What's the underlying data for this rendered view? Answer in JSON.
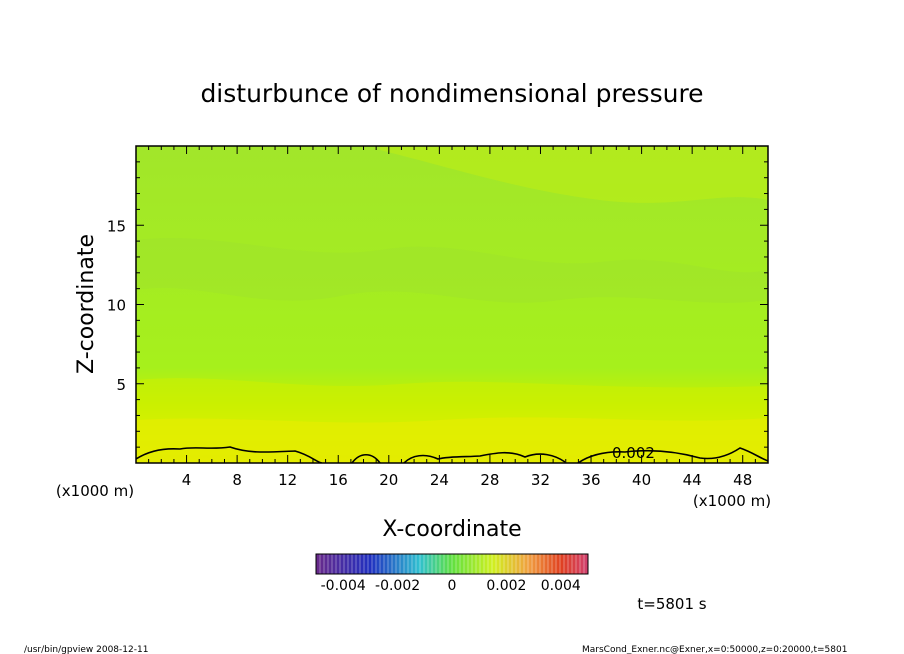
{
  "chart_data": {
    "type": "heatmap",
    "title": "disturbunce of nondimensional pressure",
    "xlabel": "X-coordinate",
    "ylabel": "Z-coordinate",
    "x_unit": "(x1000 m)",
    "z_unit": "(x1000 m)",
    "xlim": [
      0,
      50
    ],
    "ylim": [
      0,
      20
    ],
    "x_ticks": [
      "4",
      "8",
      "12",
      "16",
      "20",
      "24",
      "28",
      "32",
      "36",
      "40",
      "44",
      "48"
    ],
    "y_ticks": [
      "5",
      "10",
      "15"
    ],
    "contour_label": "0.002",
    "colorbar": {
      "range": [
        -0.005,
        0.005
      ],
      "tick_labels": [
        "-0.004",
        "-0.002",
        "0",
        "0.002",
        "0.004"
      ]
    },
    "time_label": "t=5801 s",
    "footer_left": "/usr/bin/gpview   2008-12-11",
    "footer_right": "MarsCond_Exner.nc@Exner,x=0:50000,z=0:20000,t=5801"
  }
}
